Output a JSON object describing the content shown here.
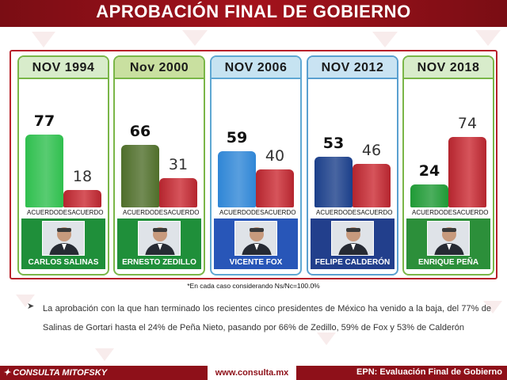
{
  "title": "APROBACIÓN FINAL DE GOBIERNO",
  "chart_data": {
    "type": "bar",
    "categories": [
      "NOV 1994",
      "Nov 2000",
      "NOV 2006",
      "NOV 2012",
      "NOV 2018"
    ],
    "series": [
      {
        "name": "Acuerdo",
        "values": [
          77,
          66,
          59,
          53,
          24
        ]
      },
      {
        "name": "Desacuerdo",
        "values": [
          18,
          31,
          40,
          46,
          74
        ]
      }
    ],
    "presidents": [
      "CARLOS SALINAS",
      "ERNESTO ZEDILLO",
      "VICENTE FOX",
      "FELIPE CALDERÓN",
      "ENRIQUE PEÑA"
    ],
    "bar_labels": {
      "acuerdo": "Acuerdo",
      "desacuerdo": "Desacuerdo"
    },
    "ylim": [
      0,
      100
    ],
    "colors": {
      "acuerdo": [
        "#2fbf4e",
        "#4f6e2a",
        "#2f86d6",
        "#1b3f8a",
        "#1f9a35"
      ],
      "desacuerdo": "#c7323c",
      "card_border": [
        "#7ab648",
        "#7ab648",
        "#5fa8d3",
        "#5aa0d0",
        "#7ab648"
      ],
      "card_header": [
        "#d8eccb",
        "#c9e0a0",
        "#c6e3f1",
        "#c9e3f2",
        "#d8eccb"
      ],
      "portrait_bg": [
        "#1f8f3a",
        "#1f8f3a",
        "#2856b8",
        "#223f8c",
        "#2c8f3a"
      ]
    }
  },
  "footnote": "*En cada caso considerando Ns/Nc=100.0%",
  "bullet_text": "La aprobación con la que han terminado los recientes cinco presidentes de México ha venido a la baja, del 77% de Salinas de Gortari hasta el 24% de Peña Nieto, pasando por 66% de Zedillo, 59% de Fox y 53% de Calderón",
  "footer": {
    "logo": "CONSULTA MITOFSKY",
    "url": "www.consulta.mx",
    "right": "EPN: Evaluación Final de Gobierno"
  }
}
